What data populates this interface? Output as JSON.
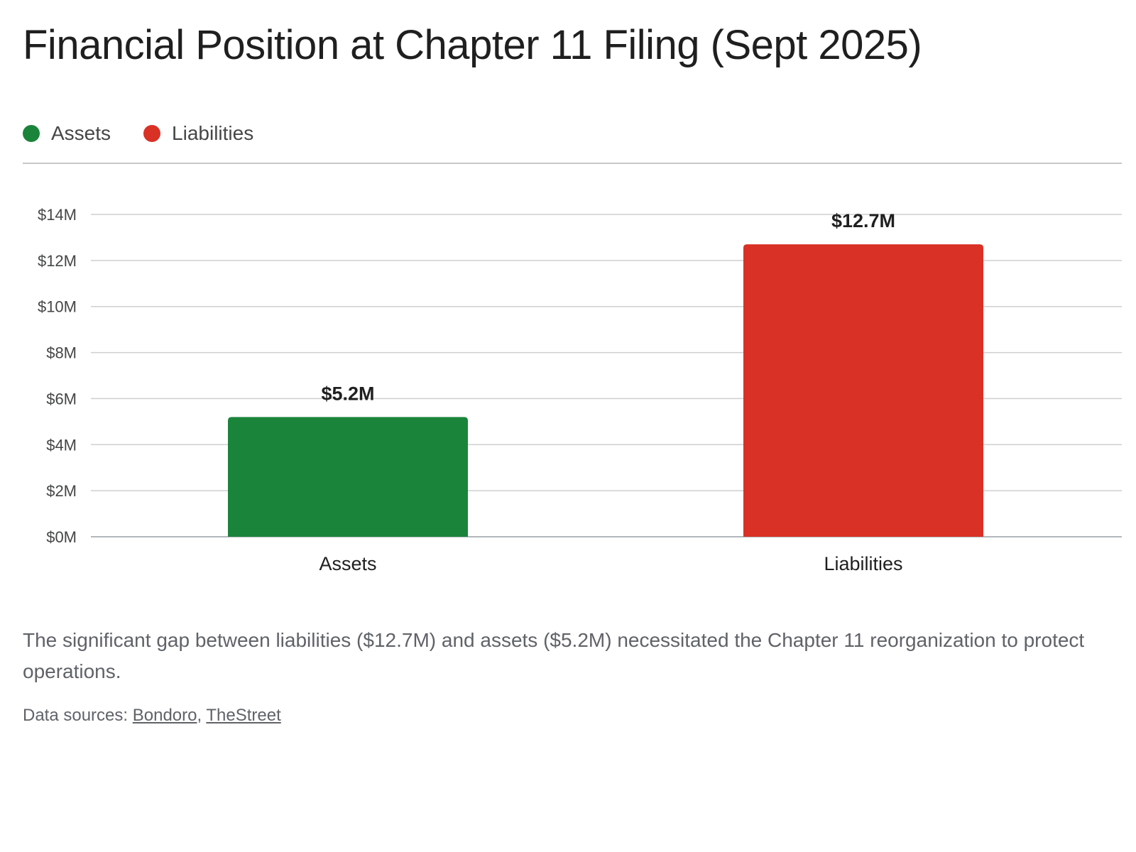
{
  "title": "Financial Position at Chapter 11 Filing (Sept 2025)",
  "legend": [
    {
      "label": "Assets",
      "color": "#1a843b"
    },
    {
      "label": "Liabilities",
      "color": "#d93125"
    }
  ],
  "chart_data": {
    "type": "bar",
    "title": "Financial Position at Chapter 11 Filing (Sept 2025)",
    "categories": [
      "Assets",
      "Liabilities"
    ],
    "values": [
      5.2,
      12.7
    ],
    "value_labels": [
      "$5.2M",
      "$12.7M"
    ],
    "colors": [
      "#1a843b",
      "#d93125"
    ],
    "unit": "$M",
    "ylim": [
      0,
      14
    ],
    "yticks": [
      0,
      2,
      4,
      6,
      8,
      10,
      12,
      14
    ],
    "ytick_labels": [
      "$0M",
      "$2M",
      "$4M",
      "$6M",
      "$8M",
      "$10M",
      "$12M",
      "$14M"
    ],
    "xlabel": "",
    "ylabel": "",
    "grid": true,
    "legend_position": "top-left"
  },
  "caption": "The significant gap between liabilities ($12.7M) and assets ($5.2M) necessitated the Chapter 11 reorganization to protect operations.",
  "sources": {
    "prefix": "Data sources: ",
    "separator": ", ",
    "links": [
      "Bondoro",
      "TheStreet"
    ]
  }
}
